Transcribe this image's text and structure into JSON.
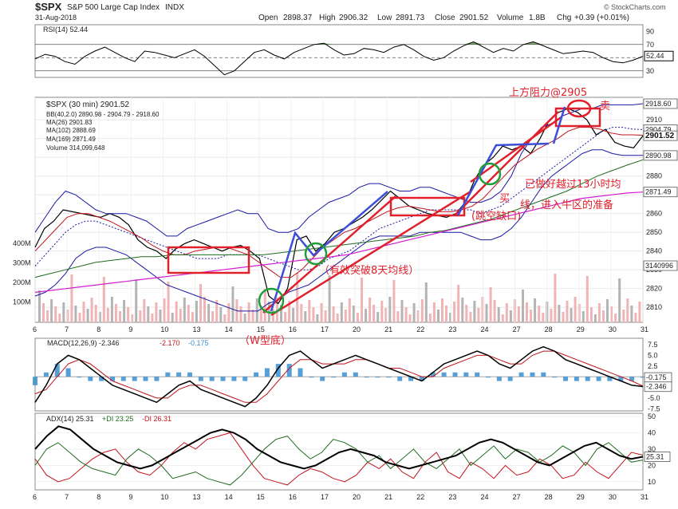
{
  "header": {
    "symbol": "$SPX",
    "name": "S&P 500 Large Cap Index",
    "exchange": "INDX",
    "date": "31-Aug-2018",
    "open_label": "Open",
    "open": "2898.37",
    "high_label": "High",
    "high": "2906.32",
    "low_label": "Low",
    "low": "2891.73",
    "close_label": "Close",
    "close": "2901.52",
    "volume_label": "Volume",
    "volume": "1.8B",
    "chg_label": "Chg",
    "chg": "+0.39 (+0.01%)",
    "watermark": "© StockCharts.com"
  },
  "colors": {
    "price": "#000000",
    "bb": "#1a1aa6",
    "ma26": "#c0151d",
    "ma102": "#1e6b1e",
    "ma169": "#d21ed2",
    "vol_up": "#f0b4b4",
    "vol_down": "#b4b4b4",
    "annotation": "#e0202a",
    "trend_blue": "#3c4fd6",
    "circle_green": "#1f9e3a",
    "macd_hist": "#3a8fd0",
    "rsi_fill": "#4a7a3a"
  },
  "chart_data": [
    {
      "type": "line",
      "title": "RSI(14) 52.44",
      "legend": [
        "RSI(14) 52.44"
      ],
      "ylim": [
        20,
        100
      ],
      "yticks": [
        90,
        70,
        50,
        30
      ],
      "reference_lines": [
        70,
        50,
        30
      ],
      "last_value_label": "52.44",
      "series": [
        {
          "name": "RSI(14)",
          "values": [
            48,
            55,
            52,
            44,
            40,
            52,
            60,
            66,
            58,
            50,
            44,
            60,
            58,
            54,
            50,
            56,
            62,
            52,
            38,
            24,
            30,
            44,
            58,
            62,
            54,
            48,
            58,
            64,
            70,
            72,
            62,
            54,
            56,
            64,
            62,
            58,
            66,
            70,
            62,
            52,
            46,
            50,
            60,
            68,
            74,
            66,
            58,
            64,
            60,
            70,
            74,
            68,
            62,
            56,
            58,
            60,
            58,
            50,
            44,
            42,
            46,
            52
          ]
        }
      ]
    },
    {
      "type": "line",
      "title": "$SPX (30 min) 2901.52",
      "legend": [
        "$SPX (30 min) 2901.52",
        "BB(40,2.0) 2890.98 - 2904.79 - 2918.60",
        "MA(26) 2901.83",
        "MA(102) 2888.69",
        "MA(169) 2871.49",
        "Volume 314,099,648"
      ],
      "ylim": [
        2802,
        2922
      ],
      "yticks": [
        2810,
        2820,
        2830,
        2840,
        2850,
        2860,
        2870,
        2880,
        2890,
        2900,
        2910
      ],
      "volume_ticks": [
        "100M",
        "200M",
        "300M",
        "400M"
      ],
      "x_tick_labels": [
        "6",
        "7",
        "8",
        "9",
        "10",
        "13",
        "14",
        "15",
        "16",
        "17",
        "20",
        "21",
        "22",
        "23",
        "24",
        "27",
        "28",
        "29",
        "30",
        "31"
      ],
      "price_tags": [
        "2918.60",
        "2904.79",
        "2901.52",
        "2890.98",
        "2871.49",
        "3140996"
      ],
      "series": [
        {
          "name": "$SPX",
          "values": [
            2842,
            2852,
            2856,
            2862,
            2861,
            2860,
            2859,
            2858,
            2860,
            2858,
            2854,
            2846,
            2842,
            2840,
            2836,
            2841,
            2844,
            2846,
            2844,
            2842,
            2840,
            2842,
            2843,
            2840,
            2836,
            2816,
            2812,
            2820,
            2846,
            2848,
            2840,
            2844,
            2850,
            2852,
            2855,
            2858,
            2862,
            2867,
            2872,
            2868,
            2864,
            2862,
            2860,
            2859,
            2858,
            2860,
            2866,
            2878,
            2886,
            2890,
            2896,
            2894,
            2896,
            2892,
            2900,
            2910,
            2914,
            2916,
            2914,
            2910,
            2902,
            2905,
            2898,
            2896,
            2895,
            2901.5
          ]
        },
        {
          "name": "BB upper",
          "values": [
            2850,
            2858,
            2866,
            2872,
            2870,
            2866,
            2862,
            2860,
            2860,
            2860,
            2858,
            2856,
            2852,
            2848,
            2848,
            2852,
            2854,
            2856,
            2858,
            2860,
            2862,
            2860,
            2860,
            2852,
            2850,
            2850,
            2852,
            2858,
            2862,
            2866,
            2868,
            2870,
            2874,
            2876,
            2876,
            2874,
            2872,
            2872,
            2874,
            2874,
            2872,
            2870,
            2868,
            2866,
            2866,
            2868,
            2872,
            2880,
            2892,
            2900,
            2906,
            2908,
            2912,
            2914,
            2916,
            2916,
            2918,
            2918,
            2918,
            2918,
            2918.6
          ]
        },
        {
          "name": "BB middle",
          "values": [
            2832,
            2838,
            2844,
            2850,
            2854,
            2856,
            2856,
            2854,
            2852,
            2850,
            2848,
            2846,
            2844,
            2842,
            2840,
            2838,
            2836,
            2836,
            2836,
            2838,
            2838,
            2838,
            2838,
            2836,
            2834,
            2832,
            2830,
            2830,
            2832,
            2836,
            2838,
            2840,
            2844,
            2848,
            2852,
            2854,
            2856,
            2858,
            2860,
            2862,
            2862,
            2862,
            2862,
            2862,
            2860,
            2862,
            2864,
            2868,
            2872,
            2876,
            2880,
            2884,
            2888,
            2892,
            2896,
            2900,
            2904,
            2906,
            2906,
            2905,
            2904.8
          ]
        },
        {
          "name": "BB lower",
          "values": [
            2816,
            2818,
            2822,
            2828,
            2836,
            2840,
            2842,
            2842,
            2840,
            2838,
            2834,
            2830,
            2826,
            2822,
            2820,
            2818,
            2816,
            2814,
            2812,
            2810,
            2808,
            2808,
            2808,
            2812,
            2814,
            2818,
            2820,
            2822,
            2826,
            2830,
            2834,
            2838,
            2842,
            2846,
            2848,
            2848,
            2848,
            2848,
            2850,
            2850,
            2850,
            2850,
            2850,
            2848,
            2846,
            2846,
            2848,
            2852,
            2858,
            2866,
            2874,
            2880,
            2884,
            2888,
            2892,
            2894,
            2894,
            2892,
            2891,
            2891,
            2891
          ]
        },
        {
          "name": "MA(26)",
          "values": [
            2840,
            2846,
            2852,
            2858,
            2860,
            2860,
            2858,
            2856,
            2853,
            2850,
            2847,
            2843,
            2840,
            2838,
            2838,
            2840,
            2841,
            2842,
            2842,
            2840,
            2838,
            2834,
            2830,
            2826,
            2826,
            2830,
            2836,
            2842,
            2846,
            2850,
            2852,
            2855,
            2858,
            2861,
            2863,
            2864,
            2863,
            2862,
            2861,
            2861,
            2862,
            2864,
            2868,
            2874,
            2880,
            2886,
            2890,
            2894,
            2897,
            2900,
            2904,
            2906,
            2906,
            2905,
            2903,
            2902,
            2902,
            2901.8
          ]
        },
        {
          "name": "MA(102)",
          "values": [
            2826,
            2828,
            2830,
            2832,
            2834,
            2835,
            2836,
            2837,
            2837,
            2838,
            2838,
            2838,
            2838,
            2838,
            2838,
            2838,
            2839,
            2840,
            2841,
            2842,
            2843,
            2844,
            2845,
            2846,
            2847,
            2848,
            2850,
            2851,
            2853,
            2855,
            2857,
            2860,
            2863,
            2866,
            2869,
            2872,
            2876,
            2880,
            2883,
            2886,
            2888.7
          ]
        },
        {
          "name": "MA(169)",
          "values": [
            2818,
            2819,
            2820,
            2821,
            2822,
            2823,
            2824,
            2825,
            2826,
            2827,
            2828,
            2829,
            2830,
            2831,
            2832,
            2833,
            2834,
            2835,
            2836,
            2837,
            2838,
            2840,
            2842,
            2844,
            2846,
            2848,
            2850,
            2852,
            2854,
            2856,
            2858,
            2860,
            2862,
            2864,
            2866,
            2868,
            2869,
            2870,
            2871,
            2871.5
          ]
        }
      ]
    },
    {
      "type": "line",
      "title": "MACD(12,26,9) -2.346, -2.170, -0.175",
      "legend": [
        "MACD(12,26,9) -2.346",
        "-2.170",
        "-0.175"
      ],
      "ylim": [
        -8,
        9
      ],
      "yticks": [
        7.5,
        5.0,
        2.5,
        0.0,
        -2.5,
        -5.0,
        -7.5
      ],
      "value_tags": [
        "-0.175",
        "-2.346"
      ],
      "series": [
        {
          "name": "MACD",
          "values": [
            -6,
            -2,
            3,
            5,
            4,
            2,
            0,
            -2,
            -3,
            -4,
            -5,
            -6,
            -4,
            -2,
            -1,
            -3,
            -4,
            -5,
            -6,
            -7,
            -5,
            -2,
            2,
            5,
            6,
            4,
            2,
            3,
            4,
            5,
            4,
            3,
            2,
            1,
            0,
            -1,
            1,
            3,
            4,
            5,
            6,
            5,
            3,
            2,
            4,
            6,
            7,
            6,
            4,
            3,
            2,
            1,
            0,
            -1,
            -2,
            -2.3
          ]
        },
        {
          "name": "Signal",
          "values": [
            -4,
            -3,
            0,
            3,
            4,
            3,
            1,
            -1,
            -2,
            -3,
            -4,
            -5,
            -5,
            -3,
            -2,
            -2,
            -3,
            -4,
            -5,
            -6,
            -6,
            -4,
            -1,
            2,
            4,
            4,
            3,
            3,
            3,
            4,
            4,
            3,
            2,
            2,
            1,
            0,
            0,
            2,
            3,
            4,
            5,
            5,
            4,
            3,
            3,
            5,
            6,
            6,
            5,
            4,
            3,
            2,
            1,
            0,
            -1,
            -2.2
          ]
        },
        {
          "name": "Histogram",
          "values": [
            -2,
            1,
            3,
            2,
            0,
            -1,
            -1,
            -1,
            -1,
            -1,
            -1,
            -1,
            1,
            1,
            1,
            -1,
            -1,
            -1,
            -1,
            -1,
            1,
            2,
            3,
            3,
            2,
            0,
            -1,
            0,
            1,
            1,
            0,
            0,
            0,
            -1,
            -1,
            -1,
            1,
            1,
            1,
            1,
            1,
            0,
            -1,
            -1,
            1,
            1,
            1,
            0,
            -1,
            -1,
            -1,
            -1,
            -1,
            -1,
            -1,
            -0.2
          ]
        }
      ]
    },
    {
      "type": "line",
      "title": "ADX(14) 25.31 +DI 23.25 -DI 26.31",
      "legend": [
        "ADX(14) 25.31",
        "+DI 23.25",
        "-DI 26.31"
      ],
      "ylim": [
        5,
        52
      ],
      "yticks": [
        50,
        40,
        30,
        20,
        10
      ],
      "value_tags": [
        "25.31"
      ],
      "series": [
        {
          "name": "ADX(14)",
          "values": [
            30,
            38,
            44,
            42,
            36,
            30,
            26,
            22,
            20,
            18,
            20,
            24,
            28,
            32,
            36,
            40,
            42,
            40,
            36,
            30,
            26,
            22,
            20,
            18,
            20,
            24,
            28,
            30,
            28,
            26,
            22,
            20,
            18,
            20,
            22,
            24,
            26,
            30,
            34,
            36,
            34,
            30,
            26,
            22,
            20,
            24,
            28,
            32,
            34,
            30,
            26,
            24,
            25.3
          ]
        },
        {
          "name": "+DI",
          "values": [
            20,
            30,
            34,
            28,
            22,
            18,
            16,
            14,
            24,
            30,
            26,
            20,
            12,
            14,
            16,
            12,
            10,
            8,
            14,
            22,
            30,
            36,
            38,
            30,
            24,
            28,
            36,
            34,
            30,
            22,
            26,
            18,
            24,
            30,
            22,
            18,
            24,
            30,
            20,
            26,
            32,
            24,
            30,
            28,
            22,
            26,
            32,
            28,
            20,
            30,
            34,
            28,
            22,
            23.3
          ]
        },
        {
          "name": "-DI",
          "values": [
            24,
            14,
            10,
            12,
            18,
            24,
            28,
            30,
            22,
            16,
            14,
            20,
            28,
            34,
            30,
            36,
            38,
            40,
            30,
            20,
            12,
            10,
            8,
            14,
            18,
            16,
            12,
            10,
            14,
            22,
            18,
            24,
            16,
            12,
            22,
            28,
            16,
            12,
            22,
            18,
            12,
            20,
            14,
            16,
            24,
            20,
            12,
            14,
            22,
            16,
            12,
            20,
            28,
            26.3
          ]
        }
      ]
    }
  ],
  "annotations": {
    "resistance": "上方阻力@2905",
    "sell": "卖",
    "buy": "买",
    "gap_buy": "(跳空缺口)",
    "above_13h_line1": "已做好越过13小时均",
    "above_13h_line2": "线，进入牛区的准备",
    "break_ma8": "（有效突破8天均线）",
    "w_bottom": "（W型底）"
  }
}
